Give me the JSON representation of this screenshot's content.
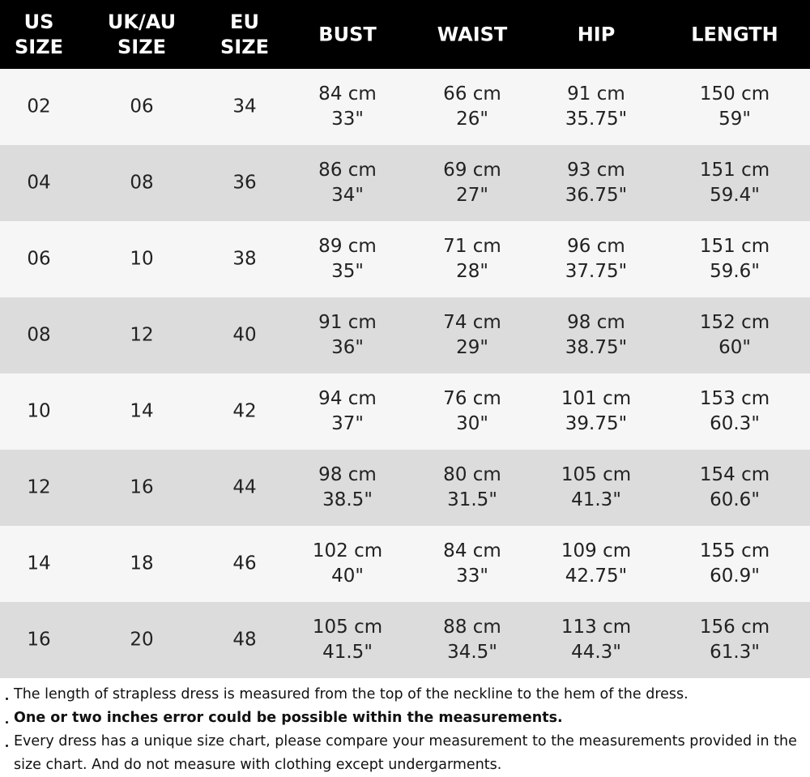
{
  "table": {
    "headers": [
      [
        "US",
        "SIZE"
      ],
      [
        "UK/AU",
        "SIZE"
      ],
      [
        "EU",
        "SIZE"
      ],
      [
        "BUST"
      ],
      [
        "WAIST"
      ],
      [
        "HIP"
      ],
      [
        "LENGTH"
      ]
    ],
    "rows": [
      [
        [
          "02"
        ],
        [
          "06"
        ],
        [
          "34"
        ],
        [
          "84 cm",
          "33\""
        ],
        [
          "66 cm",
          "26\""
        ],
        [
          "91 cm",
          "35.75\""
        ],
        [
          "150 cm",
          "59\""
        ]
      ],
      [
        [
          "04"
        ],
        [
          "08"
        ],
        [
          "36"
        ],
        [
          "86 cm",
          "34\""
        ],
        [
          "69 cm",
          "27\""
        ],
        [
          "93 cm",
          "36.75\""
        ],
        [
          "151 cm",
          "59.4\""
        ]
      ],
      [
        [
          "06"
        ],
        [
          "10"
        ],
        [
          "38"
        ],
        [
          "89 cm",
          "35\""
        ],
        [
          "71 cm",
          "28\""
        ],
        [
          "96 cm",
          "37.75\""
        ],
        [
          "151 cm",
          "59.6\""
        ]
      ],
      [
        [
          "08"
        ],
        [
          "12"
        ],
        [
          "40"
        ],
        [
          "91 cm",
          "36\""
        ],
        [
          "74 cm",
          "29\""
        ],
        [
          "98 cm",
          "38.75\""
        ],
        [
          "152 cm",
          "60\""
        ]
      ],
      [
        [
          "10"
        ],
        [
          "14"
        ],
        [
          "42"
        ],
        [
          "94 cm",
          "37\""
        ],
        [
          "76 cm",
          "30\""
        ],
        [
          "101 cm",
          "39.75\""
        ],
        [
          "153 cm",
          "60.3\""
        ]
      ],
      [
        [
          "12"
        ],
        [
          "16"
        ],
        [
          "44"
        ],
        [
          "98 cm",
          "38.5\""
        ],
        [
          "80 cm",
          "31.5\""
        ],
        [
          "105 cm",
          "41.3\""
        ],
        [
          "154 cm",
          "60.6\""
        ]
      ],
      [
        [
          "14"
        ],
        [
          "18"
        ],
        [
          "46"
        ],
        [
          "102 cm",
          "40\""
        ],
        [
          "84 cm",
          "33\""
        ],
        [
          "109 cm",
          "42.75\""
        ],
        [
          "155 cm",
          "60.9\""
        ]
      ],
      [
        [
          "16"
        ],
        [
          "20"
        ],
        [
          "48"
        ],
        [
          "105 cm",
          "41.5\""
        ],
        [
          "88 cm",
          "34.5\""
        ],
        [
          "113 cm",
          "44.3\""
        ],
        [
          "156 cm",
          "61.3\""
        ]
      ]
    ]
  },
  "notes": [
    {
      "text": "The length of strapless dress is measured from the top of the neckline to the hem of the dress.",
      "bold": false
    },
    {
      "text": "One or two inches error could be possible within the measurements.",
      "bold": true
    },
    {
      "text": "Every dress has a unique size chart, please compare your measurement to the measurements provided in the size chart. And do not measure with clothing except undergarments.",
      "bold": false
    }
  ]
}
